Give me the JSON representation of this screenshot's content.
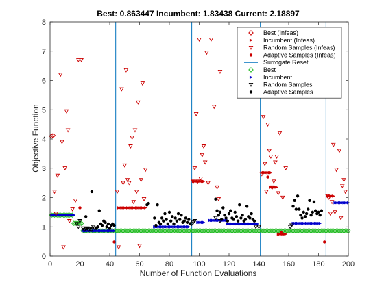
{
  "chart_data": {
    "type": "scatter",
    "title": "Best: 0.863447 Incumbent: 1.83438 Current: 2.18897",
    "xlabel": "Number of Function Evaluations",
    "ylabel": "Objective Function",
    "xlim": [
      0,
      200
    ],
    "ylim": [
      0,
      8
    ],
    "xticks": [
      0,
      20,
      40,
      60,
      80,
      100,
      120,
      140,
      160,
      180,
      200
    ],
    "yticks": [
      0,
      1,
      2,
      3,
      4,
      5,
      6,
      7,
      8
    ],
    "grid": false,
    "legend_position": "top-right",
    "legend": [
      {
        "label": "Best (Infeas)",
        "marker": "diamond-open",
        "color": "#cc0000"
      },
      {
        "label": "Incumbent (Infeas)",
        "marker": "arrow-right",
        "color": "#cc0000"
      },
      {
        "label": "Random Samples (Infeas)",
        "marker": "triangle-down-open",
        "color": "#cc0000"
      },
      {
        "label": "Adaptive Samples (Infeas)",
        "marker": "dot",
        "color": "#cc0000"
      },
      {
        "label": "Surrogate Reset",
        "marker": "line",
        "color": "#0072bd"
      },
      {
        "label": "Best",
        "marker": "diamond-open",
        "color": "#22bb22"
      },
      {
        "label": "Incumbent",
        "marker": "arrow-right",
        "color": "#0000cc"
      },
      {
        "label": "Random Samples",
        "marker": "triangle-down-open",
        "color": "#000000"
      },
      {
        "label": "Adaptive Samples",
        "marker": "dot",
        "color": "#000000"
      }
    ],
    "surrogate_resets": [
      44,
      95,
      141,
      185
    ],
    "series": [
      {
        "name": "Best (Infeas)",
        "color": "#cc0000",
        "marker": "diamond-open",
        "x": [
          1,
          2
        ],
        "y": [
          4.1,
          4.12
        ]
      },
      {
        "name": "Best",
        "color": "#22bb22",
        "marker": "diamond-open",
        "segments": [
          {
            "x_from": 1,
            "x_to": 15,
            "y": 1.4
          },
          {
            "x_from": 16,
            "x_to": 21,
            "y": 1.12
          },
          {
            "x_from": 22,
            "x_to": 200,
            "y": 0.86
          }
        ]
      },
      {
        "name": "Incumbent",
        "color": "#0000cc",
        "marker": "arrow-right",
        "segments": [
          {
            "x_from": 1,
            "x_to": 16,
            "y": 1.4
          },
          {
            "x_from": 22,
            "x_to": 43,
            "y": 0.86
          },
          {
            "x_from": 70,
            "x_to": 93,
            "y": 1.0
          },
          {
            "x_from": 99,
            "x_to": 103,
            "y": 1.15
          },
          {
            "x_from": 107,
            "x_to": 119,
            "y": 1.22
          },
          {
            "x_from": 119,
            "x_to": 139,
            "y": 1.1
          },
          {
            "x_from": 163,
            "x_to": 181,
            "y": 1.12
          },
          {
            "x_from": 191,
            "x_to": 200,
            "y": 1.82
          }
        ]
      },
      {
        "name": "Incumbent (Infeas)",
        "color": "#cc0000",
        "marker": "arrow-right",
        "segments": [
          {
            "x_from": 46,
            "x_to": 64,
            "y": 1.65
          },
          {
            "x_from": 96,
            "x_to": 103,
            "y": 2.55
          },
          {
            "x_from": 142,
            "x_to": 148,
            "y": 2.85
          },
          {
            "x_from": 148,
            "x_to": 152,
            "y": 2.35
          },
          {
            "x_from": 153,
            "x_to": 158,
            "y": 0.75
          },
          {
            "x_from": 186,
            "x_to": 190,
            "y": 2.05
          }
        ]
      },
      {
        "name": "Random Samples (Infeas)",
        "color": "#cc0000",
        "marker": "triangle-down-open",
        "x": [
          3,
          4,
          5,
          7,
          8,
          9,
          10,
          11,
          12,
          13,
          15,
          17,
          19,
          21,
          45,
          46,
          48,
          49,
          50,
          51,
          52,
          53,
          54,
          55,
          56,
          57,
          58,
          59,
          60,
          61,
          62,
          63,
          64,
          96,
          97,
          98,
          99,
          100,
          101,
          102,
          103,
          104,
          105,
          106,
          108,
          110,
          112,
          113,
          114,
          142,
          143,
          144,
          145,
          146,
          147,
          148,
          149,
          150,
          151,
          152,
          153,
          154,
          156,
          158,
          186,
          187,
          188,
          189,
          190,
          191,
          192,
          194,
          195,
          196,
          197,
          198
        ],
        "y": [
          2.2,
          1.45,
          2.75,
          6.2,
          3.9,
          0.3,
          3.0,
          4.95,
          4.3,
          1.2,
          1.6,
          1.9,
          6.7,
          6.7,
          2.2,
          0.3,
          5.7,
          2.5,
          3.1,
          6.35,
          2.6,
          2.5,
          3.75,
          4.05,
          1.85,
          4.3,
          2.2,
          5.25,
          0.35,
          2.6,
          5.9,
          1.95,
          2.95,
          2.55,
          3.0,
          4.85,
          2.55,
          7.4,
          2.65,
          3.45,
          3.75,
          3.2,
          6.95,
          2.5,
          7.4,
          5.1,
          2.35,
          1.95,
          6.3,
          2.8,
          4.75,
          3.15,
          2.2,
          4.5,
          3.6,
          3.4,
          2.35,
          2.55,
          3.2,
          3.4,
          2.15,
          4.2,
          2.0,
          3.0,
          2.05,
          2.0,
          1.45,
          1.85,
          3.8,
          1.5,
          2.95,
          3.6,
          1.3,
          2.4,
          2.6,
          2.2
        ]
      },
      {
        "name": "Adaptive Samples (Infeas)",
        "color": "#cc0000",
        "marker": "dot",
        "x": [
          20,
          43,
          146,
          155,
          184
        ],
        "y": [
          1.65,
          0.48,
          2.7,
          0.8,
          0.48
        ]
      },
      {
        "name": "Random Samples",
        "color": "#000000",
        "marker": "triangle-down-open",
        "x": [
          18,
          19,
          20,
          22,
          23,
          24,
          25,
          26,
          27,
          28,
          29,
          30,
          95,
          96,
          97,
          111,
          114,
          138,
          140,
          161,
          162
        ],
        "y": [
          1.1,
          1.0,
          1.2,
          0.95,
          0.9,
          0.92,
          0.95,
          0.9,
          0.92,
          0.9,
          1.0,
          0.95,
          1.1,
          1.15,
          1.2,
          1.3,
          1.2,
          1.0,
          1.0,
          1.0,
          1.05
        ]
      },
      {
        "name": "Adaptive Samples",
        "color": "#000000",
        "marker": "dot",
        "x": [
          24,
          25,
          28,
          31,
          32,
          33,
          34,
          35,
          36,
          37,
          38,
          39,
          40,
          41,
          42,
          43,
          65,
          66,
          70,
          71,
          72,
          73,
          74,
          75,
          76,
          77,
          78,
          79,
          80,
          81,
          82,
          83,
          84,
          85,
          86,
          87,
          88,
          89,
          90,
          91,
          92,
          93,
          94,
          111,
          112,
          113,
          114,
          115,
          116,
          117,
          118,
          119,
          120,
          121,
          122,
          123,
          124,
          125,
          126,
          127,
          128,
          129,
          130,
          131,
          132,
          133,
          134,
          135,
          136,
          137,
          163,
          164,
          165,
          166,
          167,
          168,
          169,
          170,
          171,
          172,
          173,
          174,
          175,
          176,
          177,
          178,
          179,
          180,
          181,
          182
        ],
        "y": [
          1.35,
          0.95,
          2.2,
          0.95,
          1.0,
          1.55,
          1.1,
          1.05,
          1.2,
          1.15,
          1.0,
          1.1,
          0.95,
          1.05,
          1.1,
          1.05,
          1.75,
          1.8,
          1.3,
          1.05,
          1.75,
          1.15,
          1.1,
          1.3,
          1.2,
          1.45,
          1.25,
          1.1,
          1.5,
          1.2,
          1.35,
          1.1,
          1.3,
          1.2,
          1.45,
          1.25,
          1.4,
          1.15,
          1.2,
          1.3,
          1.15,
          1.25,
          1.1,
          1.95,
          1.55,
          1.4,
          1.5,
          1.25,
          1.65,
          1.4,
          1.3,
          1.2,
          1.45,
          1.55,
          1.3,
          1.25,
          1.5,
          1.35,
          1.2,
          1.75,
          1.3,
          1.4,
          1.2,
          1.25,
          1.7,
          1.35,
          1.3,
          1.45,
          1.25,
          1.2,
          1.7,
          1.9,
          1.6,
          2.05,
          1.6,
          1.4,
          1.3,
          1.5,
          1.35,
          1.45,
          1.6,
          1.9,
          1.4,
          1.5,
          1.85,
          1.55,
          1.45,
          1.5,
          1.4,
          1.55
        ]
      }
    ]
  }
}
